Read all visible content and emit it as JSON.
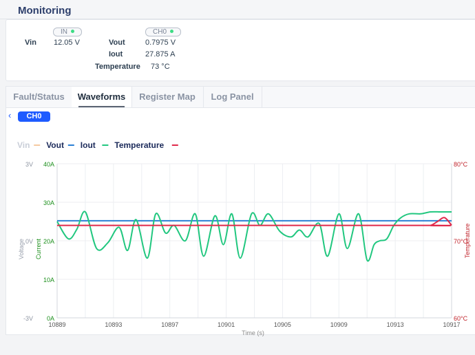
{
  "header": {
    "title": "Monitoring"
  },
  "monitor": {
    "in_badge": "IN",
    "ch0_badge": "CH0",
    "vin_label": "Vin",
    "vin_value": "12.05 V",
    "vout_label": "Vout",
    "vout_value": "0.7975 V",
    "iout_label": "Iout",
    "iout_value": "27.875 A",
    "temp_label": "Temperature",
    "temp_value": "73 °C"
  },
  "tabs": [
    {
      "label": "Fault/Status"
    },
    {
      "label": "Waveforms"
    },
    {
      "label": "Register Map"
    },
    {
      "label": "Log Panel"
    }
  ],
  "active_tab": "Waveforms",
  "channel_chip": "CH0",
  "colors": {
    "vin": "#f5c9a0",
    "vout": "#2a7fd4",
    "iout": "#21c77f",
    "temp": "#e0294a",
    "accent": "#1e5bff"
  },
  "chart_data": {
    "type": "line",
    "xlabel": "Time (s)",
    "x_ticks": [
      "10889",
      "10893",
      "10897",
      "10901",
      "10905",
      "10909",
      "10913",
      "10917"
    ],
    "xlim": [
      10889,
      10917
    ],
    "legend": [
      {
        "name": "Vin",
        "enabled": false
      },
      {
        "name": "Vout",
        "enabled": true
      },
      {
        "name": "Iout",
        "enabled": true
      },
      {
        "name": "Temperature",
        "enabled": true
      }
    ],
    "axes": {
      "voltage": {
        "label": "Voltage",
        "ticks": [
          "3V",
          "0V",
          "-3V"
        ],
        "ylim": [
          -3,
          3
        ]
      },
      "current": {
        "label": "Current",
        "ticks": [
          "40A",
          "30A",
          "20A",
          "10A",
          "0A"
        ],
        "ylim": [
          0,
          40
        ]
      },
      "temperature": {
        "label": "Temperature",
        "ticks": [
          "80°C",
          "70°C",
          "60°C"
        ],
        "ylim": [
          60,
          80
        ]
      }
    },
    "series": [
      {
        "name": "Vout",
        "axis": "voltage",
        "x": [
          10889,
          10917
        ],
        "values": [
          0.78,
          0.78
        ]
      },
      {
        "name": "Iout",
        "axis": "current",
        "x": [
          10889,
          10889.8,
          10890.4,
          10891,
          10891.8,
          10892.6,
          10893.4,
          10894,
          10894.6,
          10895.4,
          10896,
          10896.7,
          10897.3,
          10898.1,
          10898.8,
          10899.4,
          10900.2,
          10900.8,
          10901.4,
          10902,
          10902.8,
          10903.4,
          10904,
          10904.8,
          10905.6,
          10906.2,
          10906.8,
          10907.6,
          10908.2,
          10909,
          10909.6,
          10910.4,
          10911,
          10911.5,
          10911.9,
          10912.4,
          10912.9,
          10913.4,
          10914,
          10914.8,
          10915.5,
          10916.2,
          10917
        ],
        "values": [
          25,
          20.5,
          23,
          27.5,
          18,
          19.5,
          23.5,
          17.5,
          25.5,
          15.5,
          27,
          22,
          24,
          20,
          27,
          16,
          26.5,
          19,
          27,
          15.5,
          27,
          24,
          27,
          22.5,
          21,
          22.8,
          21,
          24.5,
          16,
          27,
          18,
          27,
          15,
          19,
          20,
          20.5,
          24,
          26,
          27,
          27,
          27.5,
          27.5,
          27.5
        ]
      },
      {
        "name": "Temperature",
        "axis": "temperature",
        "x": [
          10889,
          10914.8,
          10915.5,
          10916,
          10916.5,
          10917
        ],
        "values": [
          72,
          72,
          72,
          72.5,
          73,
          72
        ]
      }
    ]
  }
}
